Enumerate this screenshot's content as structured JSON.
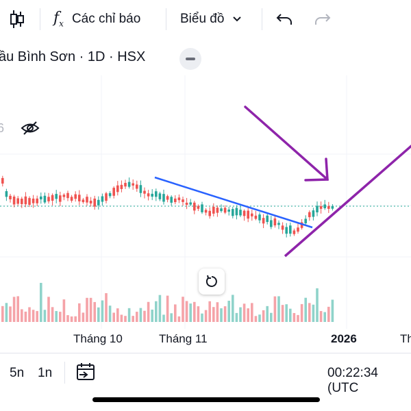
{
  "toolbar": {
    "indicators_label": "Các chỉ báo",
    "chart_type_label": "Biểu đồ"
  },
  "symbol_title": "ầu Bình Sơn · 1D · HSX",
  "left_partial_value": "6",
  "x_axis_labels": [
    "Tháng 10",
    "Tháng 11",
    "2026",
    "Th"
  ],
  "bottom_bar": {
    "range_5y": "5n",
    "range_1y": "1n",
    "clock": "00:22:34 (UTC"
  },
  "colors": {
    "up": "#26a69a",
    "down": "#ef5350",
    "vol_up": "#8fd3ca",
    "vol_down": "#f5a3a8",
    "trend_blue": "#2962ff",
    "annotation_purple": "#8e24aa",
    "price_line": "#22ab94"
  },
  "chart_data": {
    "type": "candlestick",
    "title": "",
    "xlabel": "",
    "ylabel": "",
    "x_tick_labels": [
      "Tháng 10",
      "Tháng 11",
      "2026",
      "Th"
    ],
    "annotations": [
      "downward trendline (blue)",
      "upward support line (purple)",
      "arrow pointing down toward latest candles (purple)"
    ]
  }
}
